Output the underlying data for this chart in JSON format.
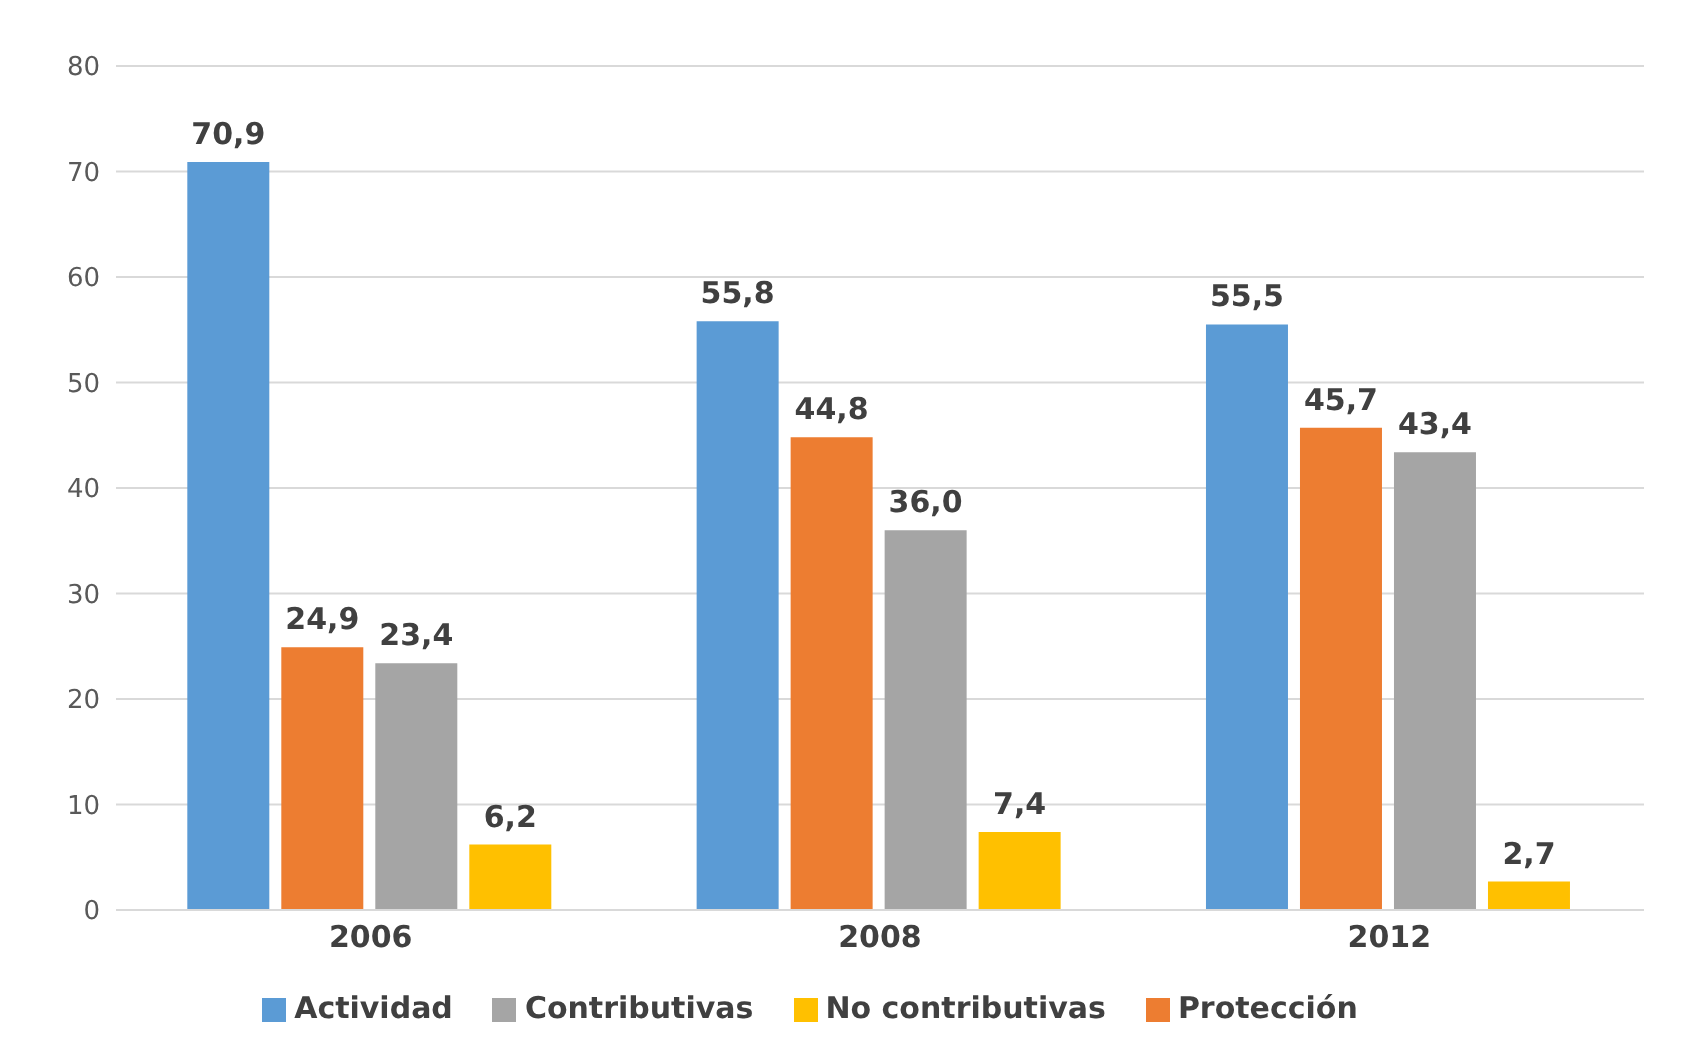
{
  "chart_data": {
    "type": "bar",
    "categories": [
      "2006",
      "2008",
      "2012"
    ],
    "series": [
      {
        "name": "Actividad",
        "color": "#5b9bd5",
        "values": [
          70.9,
          55.8,
          55.5
        ],
        "value_labels": [
          "70,9",
          "55,8",
          "55,5"
        ]
      },
      {
        "name": "Protección",
        "color": "#ed7d31",
        "values": [
          24.9,
          44.8,
          45.7
        ],
        "value_labels": [
          "24,9",
          "44,8",
          "45,7"
        ]
      },
      {
        "name": "Contributivas",
        "color": "#a5a5a5",
        "values": [
          23.4,
          36.0,
          43.4
        ],
        "value_labels": [
          "23,4",
          "36,0",
          "43,4"
        ]
      },
      {
        "name": "No contributivas",
        "color": "#ffc000",
        "values": [
          6.2,
          7.4,
          2.7
        ],
        "value_labels": [
          "6,2",
          "7,4",
          "2,7"
        ]
      }
    ],
    "ylim": [
      0,
      80
    ],
    "yticks": [
      0,
      10,
      20,
      30,
      40,
      50,
      60,
      70,
      80
    ],
    "grid": "y",
    "legend": "bottom"
  }
}
